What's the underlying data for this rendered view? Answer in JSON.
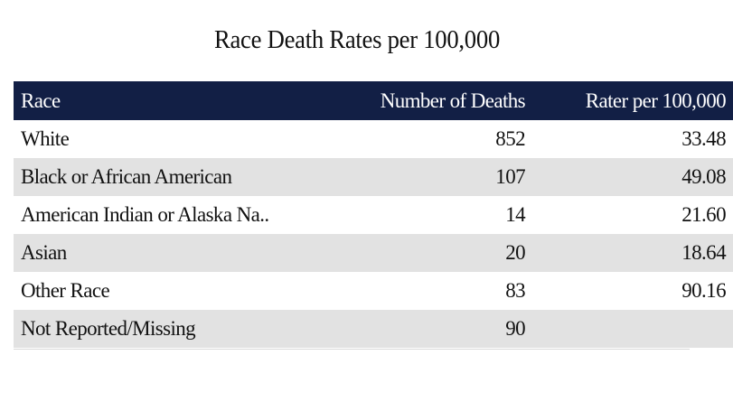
{
  "chart_data": {
    "type": "table",
    "title": "Race Death Rates per 100,000",
    "columns": [
      "Race",
      "Number of Deaths",
      "Rater per 100,000"
    ],
    "rows": [
      [
        "White",
        "852",
        "33.48"
      ],
      [
        "Black or African American",
        "107",
        "49.08"
      ],
      [
        "American Indian or Alaska Na..",
        "14",
        "21.60"
      ],
      [
        "Asian",
        "20",
        "18.64"
      ],
      [
        "Other Race",
        "83",
        "90.16"
      ],
      [
        "Not Reported/Missing",
        "90",
        ""
      ]
    ]
  },
  "colors": {
    "header_background": "#121f45",
    "header_text": "#ffffff",
    "stripe": "#e2e2e2"
  }
}
